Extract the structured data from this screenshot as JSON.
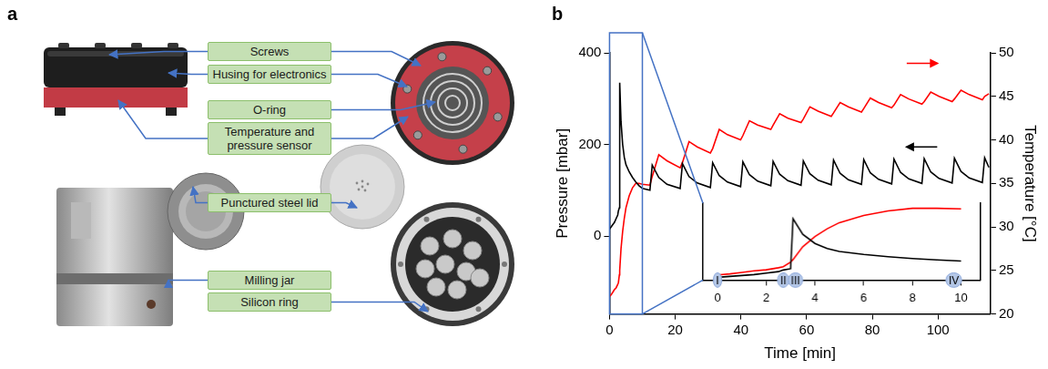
{
  "panel_letters": [
    "a",
    "b"
  ],
  "diagram": {
    "labels": [
      "Screws",
      "Husing for electronics",
      "O-ring",
      "Temperature and pressure sensor",
      "Punctured steel lid",
      "Milling jar",
      "Silicon ring"
    ]
  },
  "chart_data": [
    {
      "type": "line",
      "xlabel": "Time [min]",
      "ylabel": "Pressure [mbar]",
      "y2label": "Temperature [°C]",
      "x": [
        0,
        0.5,
        1,
        1.5,
        2,
        2.5,
        2.7,
        3,
        3.1,
        3.5,
        4,
        4.5,
        5,
        6,
        7,
        8,
        9,
        10,
        12.3,
        13,
        15,
        17.5,
        21.5,
        22.2,
        24.2,
        26.7,
        30.7,
        31.4,
        33.4,
        35.9,
        39.9,
        40.6,
        42.6,
        45.1,
        49.1,
        49.8,
        51.8,
        54.3,
        58.3,
        59,
        61,
        63.5,
        67.5,
        68.2,
        70.2,
        72.7,
        76.7,
        77.4,
        79.4,
        81.9,
        85.9,
        86.6,
        88.6,
        91.1,
        95.1,
        95.8,
        97.8,
        100.3,
        104.3,
        105,
        107,
        109.5,
        113.5,
        114.2,
        115.5
      ],
      "series": [
        {
          "color": "#000000",
          "axis": "y",
          "values": [
            15,
            20,
            25,
            30,
            38,
            46,
            55,
            62,
            335,
            250,
            200,
            172,
            156,
            140,
            128,
            118,
            110,
            104,
            100,
            155,
            128,
            113,
            104,
            158,
            130,
            116,
            106,
            160,
            132,
            118,
            108,
            162,
            134,
            120,
            110,
            163,
            135,
            121,
            111,
            164,
            136,
            122,
            112,
            166,
            137,
            123,
            113,
            167,
            138,
            124,
            114,
            168,
            139,
            125,
            115,
            169,
            140,
            126,
            116,
            170,
            141,
            127,
            117,
            171,
            150
          ]
        },
        {
          "color": "#ff0000",
          "axis": "y2",
          "values": [
            22,
            22.2,
            22.5,
            22.8,
            23,
            23.4,
            23.6,
            24.5,
            25,
            27.5,
            29.5,
            31,
            32.2,
            33.6,
            34.5,
            35,
            35,
            34.9,
            34.8,
            35.8,
            38.3,
            37.6,
            36.8,
            37.4,
            39.8,
            39.2,
            38.5,
            39,
            41.2,
            40.6,
            40,
            40.5,
            42.2,
            41.7,
            41.2,
            41.7,
            43,
            42.5,
            42,
            42.4,
            43.8,
            43.3,
            42.7,
            43.1,
            44.3,
            43.8,
            43.2,
            43.6,
            44.8,
            44.3,
            43.7,
            44,
            45.2,
            44.7,
            44.1,
            44.4,
            45.5,
            45,
            44.4,
            44.7,
            45.7,
            45.2,
            44.6,
            45,
            45.3
          ]
        }
      ],
      "xlim": [
        0,
        116
      ],
      "xticks": [
        0,
        20,
        40,
        60,
        80,
        100
      ],
      "ylim": [
        -170,
        400
      ],
      "yticks": [
        0,
        200,
        400
      ],
      "y2lim": [
        20,
        50
      ],
      "y2ticks": [
        20,
        25,
        30,
        35,
        40,
        45,
        50
      ],
      "grid": false
    },
    {
      "type": "line",
      "x": [
        0,
        0.5,
        1,
        1.5,
        2,
        2.5,
        2.7,
        3,
        3.1,
        3.5,
        4,
        4.5,
        5,
        6,
        7,
        8,
        9,
        10
      ],
      "series": [
        {
          "color": "#000000",
          "axis": "y",
          "values": [
            15,
            20,
            25,
            30,
            38,
            46,
            55,
            62,
            335,
            250,
            200,
            172,
            156,
            140,
            128,
            118,
            110,
            104
          ]
        },
        {
          "color": "#ff0000",
          "axis": "y2",
          "values": [
            22,
            22.2,
            22.5,
            22.8,
            23,
            23.4,
            23.6,
            24.5,
            25,
            27.5,
            29.5,
            31,
            32.2,
            33.6,
            34.5,
            35,
            35,
            34.9
          ]
        }
      ],
      "xlim": [
        -0.6,
        10.8
      ],
      "xticks": [
        0,
        2,
        4,
        6,
        8,
        10
      ],
      "ylim": [
        0,
        420
      ],
      "y2lim": [
        21,
        36
      ],
      "tick_labels": "x",
      "grid": false,
      "annotations": [
        {
          "text": "I",
          "x": 0
        },
        {
          "text": "II",
          "x": 2.7
        },
        {
          "text": "III",
          "x": 3.2
        },
        {
          "text": "IV",
          "x": 9.7
        }
      ]
    }
  ]
}
